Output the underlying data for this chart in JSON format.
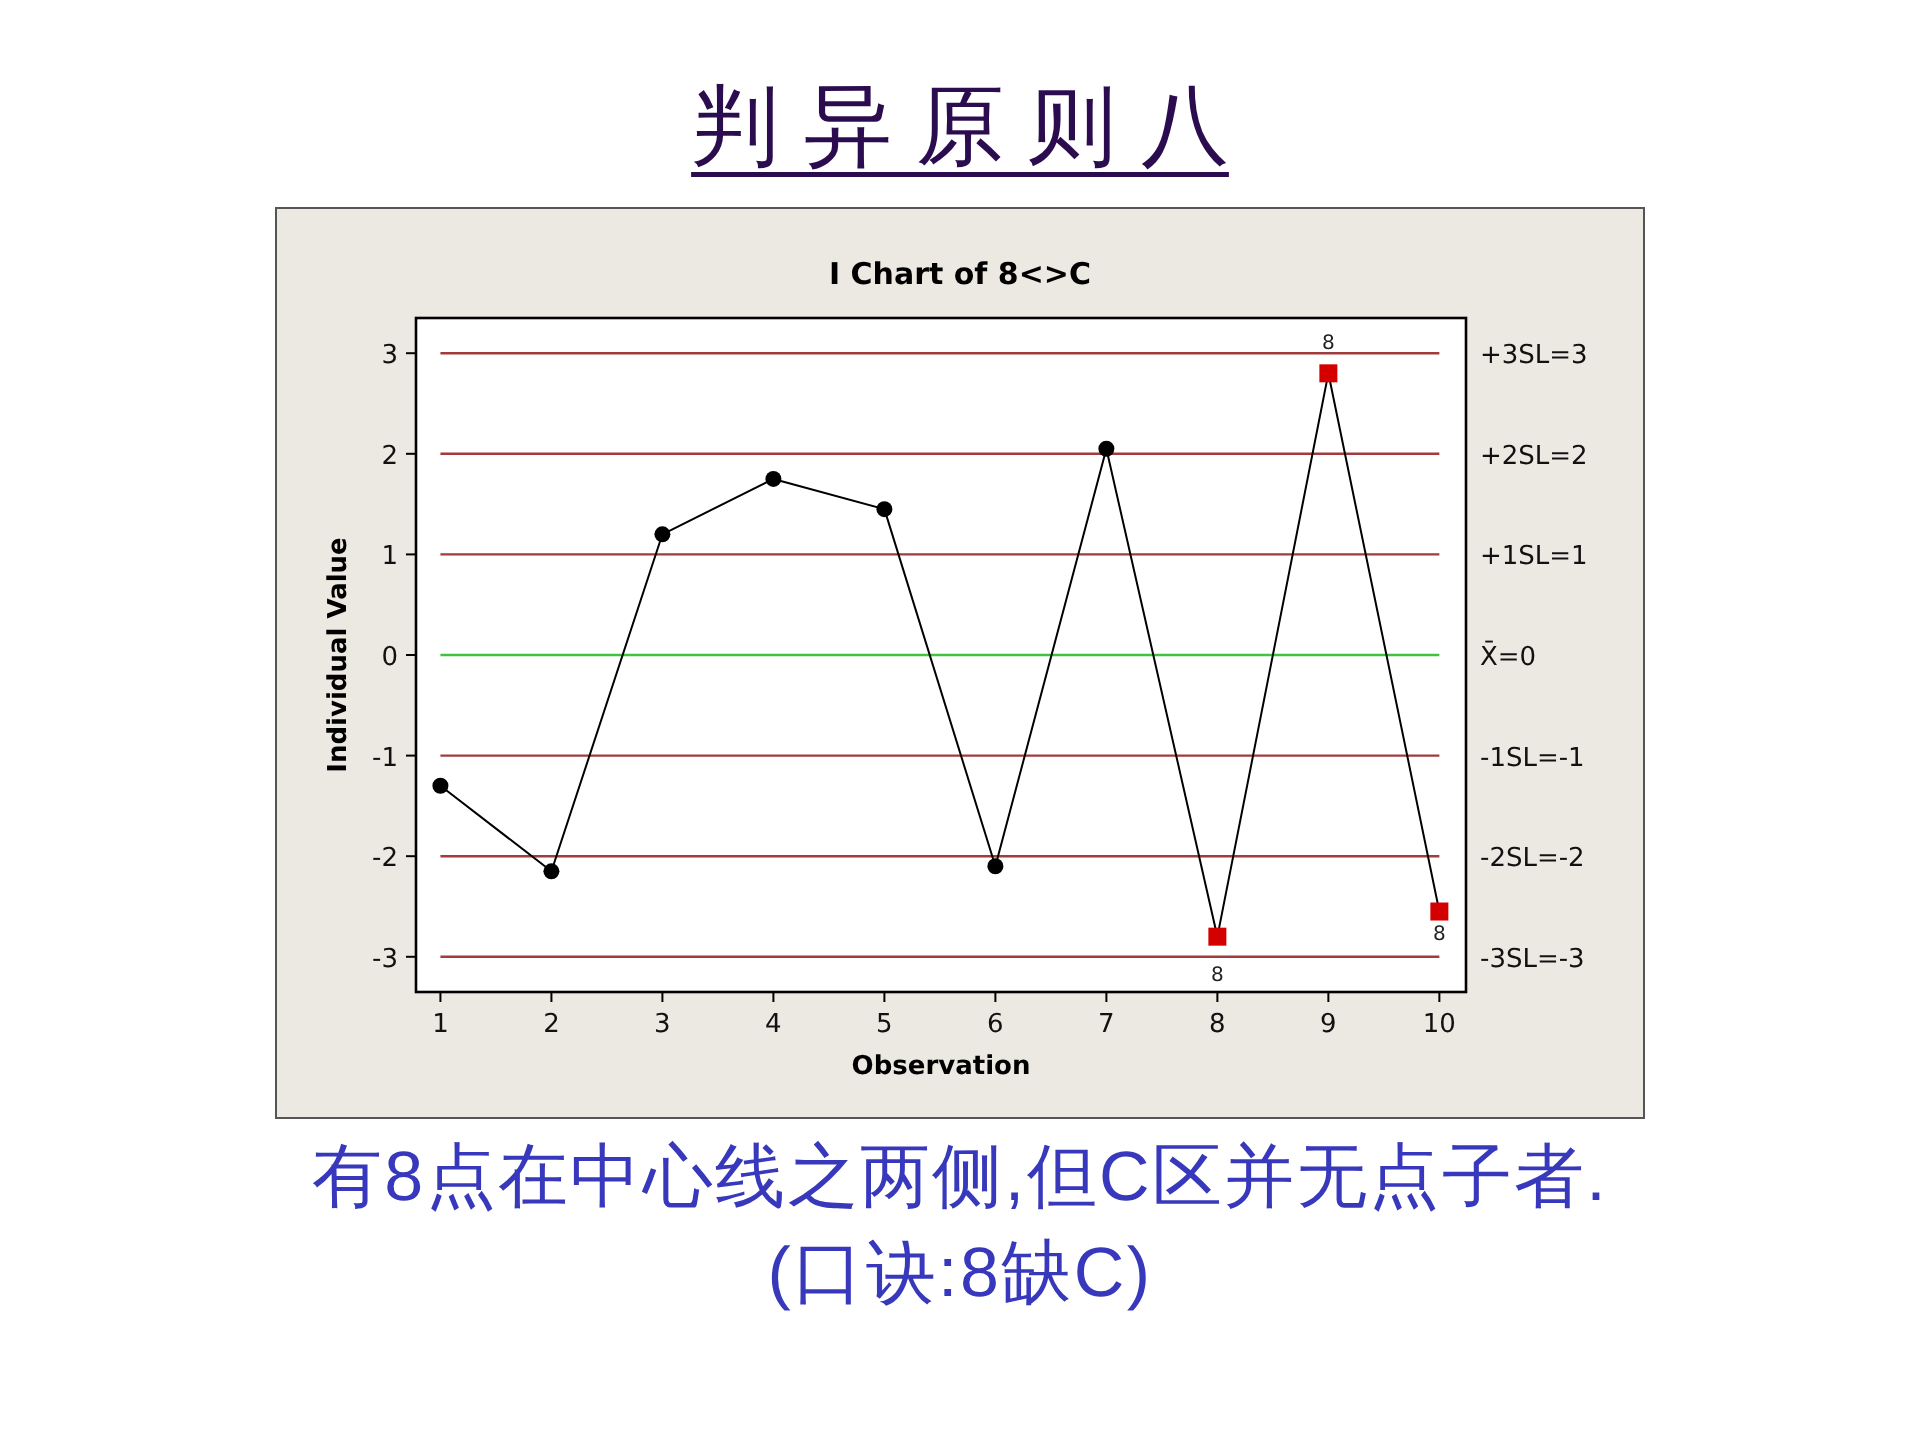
{
  "chart_data": {
    "type": "line",
    "title": "判 异 原 则 八",
    "subtitle": "I Chart of 8<>C",
    "xlabel": "Observation",
    "ylabel": "Individual Value",
    "x": [
      1,
      2,
      3,
      4,
      5,
      6,
      7,
      8,
      9,
      10
    ],
    "xlim": [
      0.78,
      10.24
    ],
    "xticks": [
      1,
      2,
      3,
      4,
      5,
      6,
      7,
      8,
      9,
      10
    ],
    "ylim": [
      -3.35,
      3.35
    ],
    "yticks": [
      -3,
      -2,
      -1,
      0,
      1,
      2,
      3
    ],
    "series": [
      {
        "type": "line",
        "color": "#000000",
        "marker": "none",
        "values": [
          -1.3,
          -2.15,
          1.2,
          1.75,
          1.45,
          -2.1,
          2.05,
          -2.8,
          2.8,
          -2.55
        ]
      },
      {
        "type": "scatter",
        "color": "#000000",
        "marker": "circle",
        "x": [
          1,
          2,
          3,
          4,
          5,
          6,
          7
        ],
        "values": [
          -1.3,
          -2.15,
          1.2,
          1.75,
          1.45,
          -2.1,
          2.05
        ]
      },
      {
        "type": "scatter",
        "color": "#d40000",
        "marker": "square",
        "x": [
          8,
          9,
          10
        ],
        "values": [
          -2.8,
          2.8,
          -2.55
        ]
      }
    ],
    "ref_lines": [
      {
        "axis": "y",
        "value": 3,
        "label": "+3SL=3",
        "color": "#a03c3c"
      },
      {
        "axis": "y",
        "value": 2,
        "label": "+2SL=2",
        "color": "#a03c3c"
      },
      {
        "axis": "y",
        "value": 1,
        "label": "+1SL=1",
        "color": "#a03c3c"
      },
      {
        "axis": "y",
        "value": 0,
        "label": "X̄=0",
        "color": "#3ec43e"
      },
      {
        "axis": "y",
        "value": -1,
        "label": "-1SL=-1",
        "color": "#a03c3c"
      },
      {
        "axis": "y",
        "value": -2,
        "label": "-2SL=-2",
        "color": "#a03c3c"
      },
      {
        "axis": "y",
        "value": -3,
        "label": "-3SL=-3",
        "color": "#a03c3c"
      }
    ],
    "annotations": [
      {
        "text": "8",
        "x": 8,
        "y": -2.8
      },
      {
        "text": "8",
        "x": 9,
        "y": 2.8
      },
      {
        "text": "8",
        "x": 10,
        "y": -2.55
      },
      "有8点在中心线之两侧,但C区并无点子者.",
      "(口诀:8缺C)"
    ]
  }
}
